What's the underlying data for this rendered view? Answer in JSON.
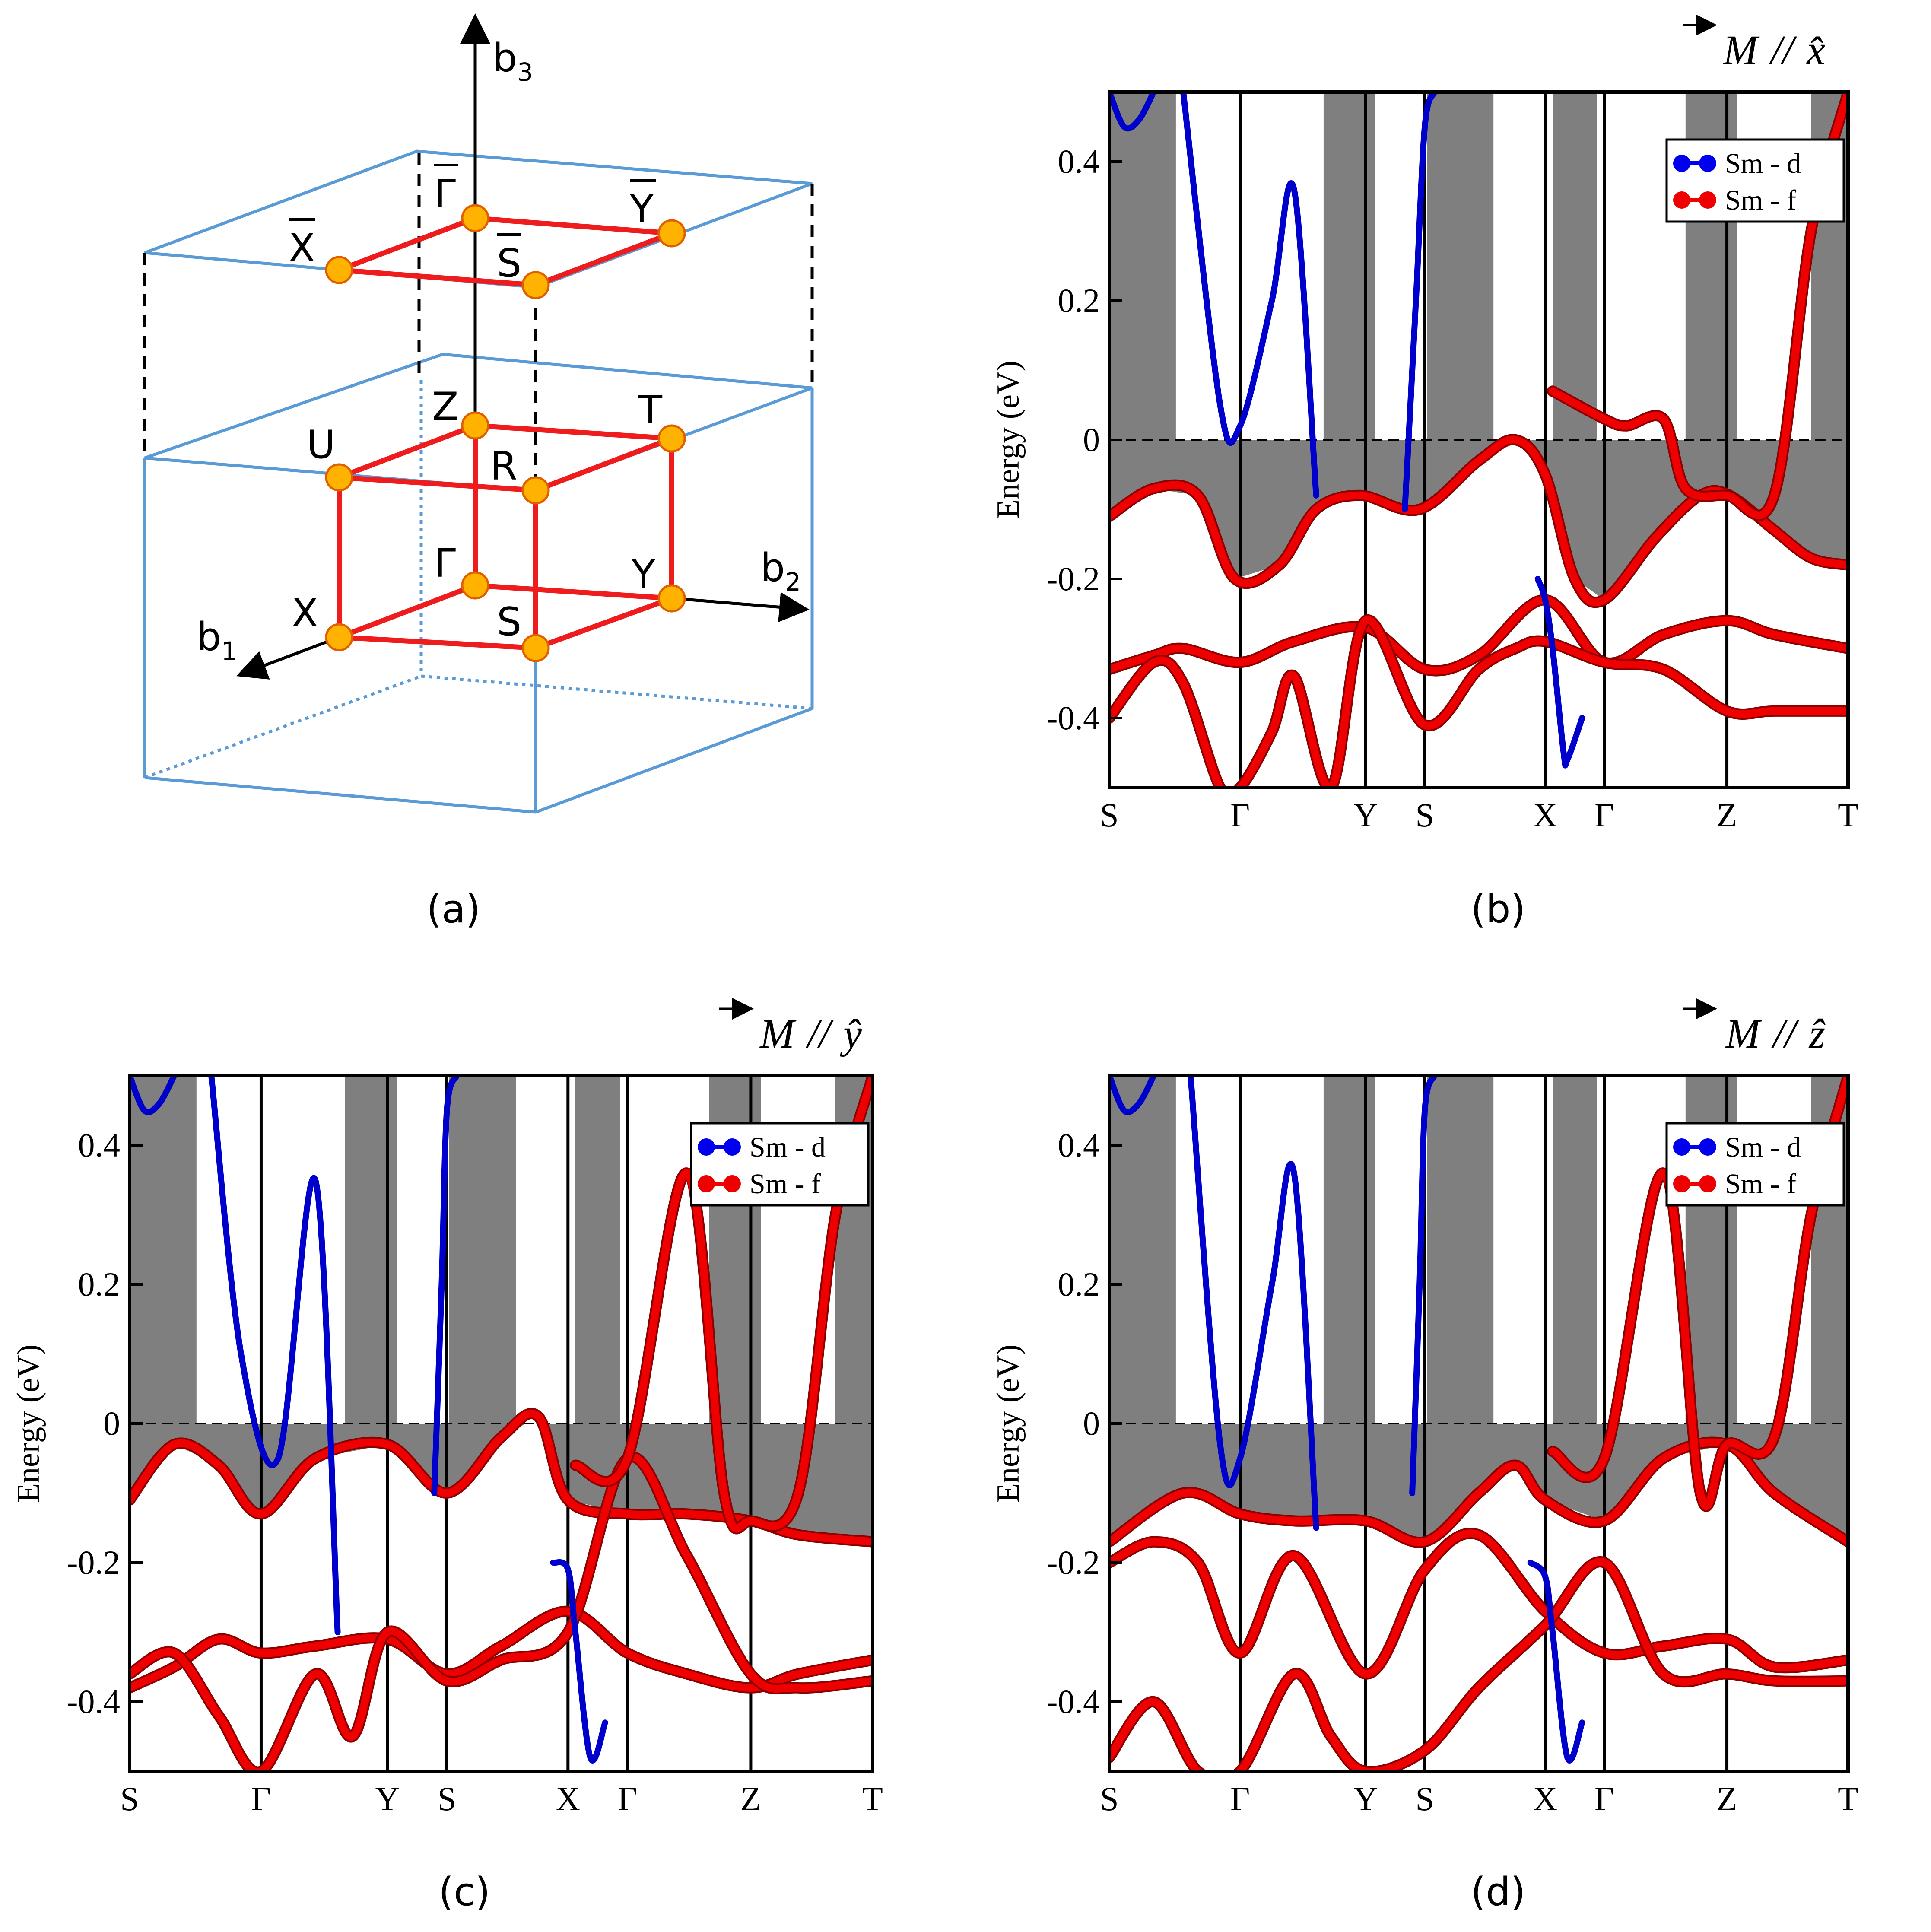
{
  "panels": {
    "a": {
      "label": "(a)"
    },
    "b": {
      "label": "(b)"
    },
    "c": {
      "label": "(c)"
    },
    "d": {
      "label": "(d)"
    }
  },
  "brillouin_zone": {
    "axes": [
      {
        "name": "b",
        "sub": "1"
      },
      {
        "name": "b",
        "sub": "2"
      },
      {
        "name": "b",
        "sub": "3"
      }
    ],
    "points": [
      "X",
      "U",
      "Z",
      "T",
      "R",
      "Γ",
      "Y",
      "S"
    ],
    "surface_points": [
      "X",
      "Γ",
      "Y",
      "S"
    ],
    "colors": {
      "edge": "#5b9bd5",
      "path": "#ee1c1c",
      "point": "#ffb300"
    }
  },
  "legend": {
    "items": [
      {
        "label": "Sm - d",
        "color": "#0000ee"
      },
      {
        "label": "Sm - f",
        "color": "#ee0000"
      }
    ]
  },
  "chart_data": [
    {
      "id": "b",
      "type": "line",
      "title": "M // x̂",
      "vector": "M",
      "sep": "//",
      "axis_hat": "x̂",
      "ylabel": "Energy (eV)",
      "ylim": [
        -0.5,
        0.5
      ],
      "yticks": [
        "0.4",
        "0.2",
        "0",
        "-0.2",
        "-0.4"
      ],
      "ytick_values": [
        0.4,
        0.2,
        0,
        -0.2,
        -0.4
      ],
      "kpoints": [
        "S",
        "Γ",
        "Y",
        "S",
        "X",
        "Γ",
        "Z",
        "T"
      ],
      "kpos": [
        0,
        0.177,
        0.347,
        0.427,
        0.59,
        0.67,
        0.836,
        1.0
      ],
      "fermi": 0,
      "bands": [
        {
          "name": "f1",
          "x": [
            0,
            0.06,
            0.12,
            0.17,
            0.23,
            0.28,
            0.34,
            0.42,
            0.5,
            0.55,
            0.59,
            0.63,
            0.67,
            0.74,
            0.8,
            0.84,
            0.9,
            0.95,
            1.0
          ],
          "y": [
            -0.11,
            -0.07,
            -0.08,
            -0.2,
            -0.18,
            -0.1,
            -0.08,
            -0.1,
            -0.03,
            0.0,
            -0.05,
            -0.2,
            -0.23,
            -0.14,
            -0.08,
            -0.08,
            -0.13,
            -0.17,
            -0.18
          ]
        },
        {
          "name": "f2",
          "x": [
            0,
            0.06,
            0.1,
            0.177,
            0.25,
            0.347,
            0.427,
            0.5,
            0.59,
            0.67,
            0.75,
            0.836,
            0.9,
            1.0
          ],
          "y": [
            -0.33,
            -0.31,
            -0.3,
            -0.32,
            -0.29,
            -0.27,
            -0.33,
            -0.31,
            -0.23,
            -0.32,
            -0.28,
            -0.26,
            -0.28,
            -0.3
          ]
        },
        {
          "name": "f3",
          "x": [
            0,
            0.06,
            0.1,
            0.15,
            0.177,
            0.22,
            0.25,
            0.3,
            0.347,
            0.427,
            0.5,
            0.55,
            0.59,
            0.67,
            0.75,
            0.836,
            0.9,
            1.0
          ],
          "y": [
            -0.4,
            -0.32,
            -0.35,
            -0.5,
            -0.5,
            -0.42,
            -0.34,
            -0.5,
            -0.26,
            -0.41,
            -0.33,
            -0.3,
            -0.29,
            -0.32,
            -0.33,
            -0.39,
            -0.39,
            -0.39
          ]
        },
        {
          "name": "f4",
          "x": [
            0.6,
            0.67,
            0.7,
            0.75,
            0.78,
            0.836,
            0.9,
            0.95,
            1.0
          ],
          "y": [
            0.07,
            0.03,
            0.02,
            0.03,
            -0.07,
            -0.08,
            -0.08,
            0.3,
            0.5
          ]
        }
      ],
      "d_bands": [
        {
          "name": "d1",
          "x": [
            0,
            0.02,
            0.04,
            0.06
          ],
          "y": [
            0.5,
            0.45,
            0.46,
            0.5
          ]
        },
        {
          "name": "d2",
          "x": [
            0.1,
            0.15,
            0.177,
            0.22,
            0.25,
            0.28
          ],
          "y": [
            0.5,
            0.05,
            0.02,
            0.2,
            0.36,
            -0.08
          ]
        },
        {
          "name": "d3",
          "x": [
            0.4,
            0.415,
            0.427,
            0.44
          ],
          "y": [
            -0.1,
            0.2,
            0.45,
            0.5
          ]
        },
        {
          "name": "d4",
          "x": [
            0.58,
            0.59,
            0.6,
            0.615,
            0.62,
            0.64
          ],
          "y": [
            -0.2,
            -0.23,
            -0.3,
            -0.45,
            -0.46,
            -0.4
          ]
        }
      ]
    },
    {
      "id": "c",
      "type": "line",
      "title": "M // ŷ",
      "vector": "M",
      "sep": "//",
      "axis_hat": "ŷ",
      "ylabel": "Energy (eV)",
      "ylim": [
        -0.5,
        0.5
      ],
      "yticks": [
        "0.4",
        "0.2",
        "0",
        "-0.2",
        "-0.4"
      ],
      "ytick_values": [
        0.4,
        0.2,
        0,
        -0.2,
        -0.4
      ],
      "kpoints": [
        "S",
        "Γ",
        "Y",
        "S",
        "X",
        "Γ",
        "Z",
        "T"
      ],
      "kpos": [
        0,
        0.177,
        0.347,
        0.427,
        0.59,
        0.67,
        0.836,
        1.0
      ],
      "fermi": 0,
      "bands": [
        {
          "name": "f1",
          "x": [
            0,
            0.06,
            0.12,
            0.177,
            0.25,
            0.347,
            0.427,
            0.5,
            0.55,
            0.59,
            0.67,
            0.75,
            0.836,
            0.9,
            1.0
          ],
          "y": [
            -0.11,
            -0.03,
            -0.06,
            -0.13,
            -0.05,
            -0.03,
            -0.1,
            -0.02,
            0.01,
            -0.11,
            -0.13,
            -0.13,
            -0.14,
            -0.16,
            -0.17
          ]
        },
        {
          "name": "f2",
          "x": [
            0,
            0.06,
            0.12,
            0.177,
            0.25,
            0.347,
            0.427,
            0.5,
            0.59,
            0.67,
            0.75,
            0.836,
            0.9,
            1.0
          ],
          "y": [
            -0.38,
            -0.35,
            -0.31,
            -0.33,
            -0.32,
            -0.31,
            -0.36,
            -0.32,
            -0.27,
            -0.33,
            -0.36,
            -0.38,
            -0.36,
            -0.34
          ]
        },
        {
          "name": "f3",
          "x": [
            0,
            0.06,
            0.12,
            0.177,
            0.25,
            0.3,
            0.347,
            0.427,
            0.5,
            0.59,
            0.67,
            0.75,
            0.836,
            0.9,
            1.0
          ],
          "y": [
            -0.36,
            -0.33,
            -0.42,
            -0.5,
            -0.36,
            -0.45,
            -0.3,
            -0.37,
            -0.34,
            -0.3,
            -0.05,
            -0.19,
            -0.36,
            -0.38,
            -0.37
          ]
        },
        {
          "name": "f4",
          "x": [
            0.6,
            0.67,
            0.75,
            0.8,
            0.836,
            0.9,
            0.95,
            1.0
          ],
          "y": [
            -0.06,
            -0.05,
            0.36,
            -0.1,
            -0.14,
            -0.1,
            0.3,
            0.5
          ]
        }
      ],
      "d_bands": [
        {
          "name": "d1",
          "x": [
            0,
            0.02,
            0.04,
            0.06
          ],
          "y": [
            0.5,
            0.45,
            0.46,
            0.5
          ]
        },
        {
          "name": "d2",
          "x": [
            0.11,
            0.15,
            0.2,
            0.25,
            0.28
          ],
          "y": [
            0.5,
            0.1,
            -0.05,
            0.35,
            -0.3
          ]
        },
        {
          "name": "d3",
          "x": [
            0.41,
            0.42,
            0.427,
            0.44
          ],
          "y": [
            -0.1,
            0.2,
            0.45,
            0.5
          ]
        },
        {
          "name": "d4",
          "x": [
            0.57,
            0.59,
            0.6,
            0.62,
            0.64
          ],
          "y": [
            -0.2,
            -0.21,
            -0.3,
            -0.48,
            -0.43
          ]
        }
      ]
    },
    {
      "id": "d",
      "type": "line",
      "title": "M // ẑ",
      "vector": "M",
      "sep": "//",
      "axis_hat": "ẑ",
      "ylabel": "Energy (eV)",
      "ylim": [
        -0.5,
        0.5
      ],
      "yticks": [
        "0.4",
        "0.2",
        "0",
        "-0.2",
        "-0.4"
      ],
      "ytick_values": [
        0.4,
        0.2,
        0,
        -0.2,
        -0.4
      ],
      "kpoints": [
        "S",
        "Γ",
        "Y",
        "S",
        "X",
        "Γ",
        "Z",
        "T"
      ],
      "kpos": [
        0,
        0.177,
        0.347,
        0.427,
        0.59,
        0.67,
        0.836,
        1.0
      ],
      "fermi": 0,
      "bands": [
        {
          "name": "f1",
          "x": [
            0,
            0.1,
            0.177,
            0.25,
            0.347,
            0.427,
            0.5,
            0.55,
            0.59,
            0.67,
            0.75,
            0.836,
            0.9,
            1.0
          ],
          "y": [
            -0.17,
            -0.1,
            -0.13,
            -0.14,
            -0.14,
            -0.17,
            -0.1,
            -0.06,
            -0.11,
            -0.14,
            -0.05,
            -0.03,
            -0.1,
            -0.17
          ]
        },
        {
          "name": "f2",
          "x": [
            0,
            0.06,
            0.12,
            0.177,
            0.25,
            0.347,
            0.427,
            0.5,
            0.59,
            0.67,
            0.75,
            0.836,
            0.9,
            1.0
          ],
          "y": [
            -0.2,
            -0.17,
            -0.2,
            -0.33,
            -0.19,
            -0.36,
            -0.21,
            -0.16,
            -0.27,
            -0.33,
            -0.32,
            -0.31,
            -0.35,
            -0.34
          ]
        },
        {
          "name": "f3",
          "x": [
            0,
            0.06,
            0.12,
            0.177,
            0.25,
            0.3,
            0.347,
            0.427,
            0.5,
            0.59,
            0.67,
            0.75,
            0.836,
            0.9,
            1.0
          ],
          "y": [
            -0.48,
            -0.4,
            -0.5,
            -0.5,
            -0.36,
            -0.45,
            -0.5,
            -0.47,
            -0.38,
            -0.29,
            -0.2,
            -0.36,
            -0.36,
            -0.37,
            -0.37
          ]
        },
        {
          "name": "f4",
          "x": [
            0.6,
            0.67,
            0.75,
            0.8,
            0.836,
            0.9,
            0.95,
            1.0
          ],
          "y": [
            -0.04,
            -0.05,
            0.36,
            -0.1,
            -0.03,
            -0.02,
            0.3,
            0.5
          ]
        }
      ],
      "d_bands": [
        {
          "name": "d1",
          "x": [
            0,
            0.02,
            0.04,
            0.06
          ],
          "y": [
            0.5,
            0.45,
            0.46,
            0.5
          ]
        },
        {
          "name": "d2",
          "x": [
            0.11,
            0.15,
            0.177,
            0.22,
            0.25,
            0.28
          ],
          "y": [
            0.5,
            -0.03,
            -0.05,
            0.2,
            0.36,
            -0.15
          ]
        },
        {
          "name": "d3",
          "x": [
            0.41,
            0.42,
            0.427,
            0.44
          ],
          "y": [
            -0.1,
            0.2,
            0.45,
            0.5
          ]
        },
        {
          "name": "d4",
          "x": [
            0.57,
            0.59,
            0.6,
            0.62,
            0.64
          ],
          "y": [
            -0.2,
            -0.22,
            -0.3,
            -0.48,
            -0.43
          ]
        }
      ]
    }
  ]
}
